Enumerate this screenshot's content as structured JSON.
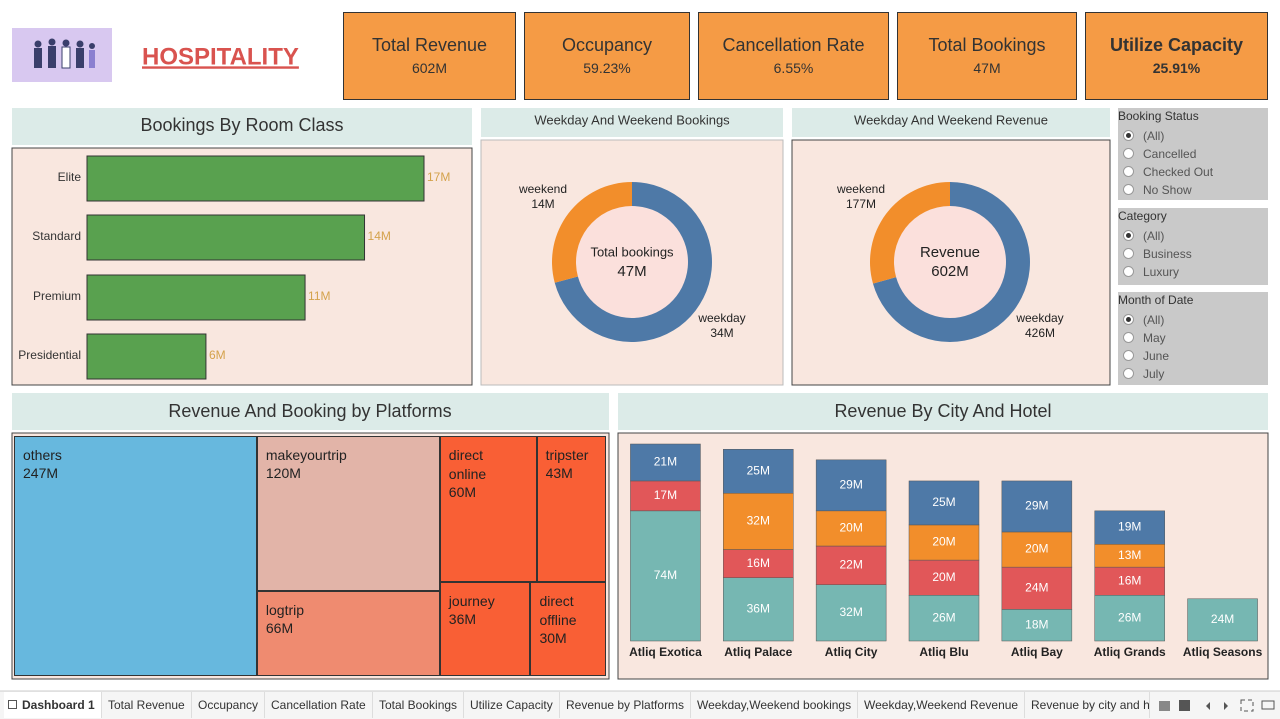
{
  "header": {
    "title": "HOSPITALITY"
  },
  "kpis": [
    {
      "label": "Total Revenue",
      "value": "602M"
    },
    {
      "label": "Occupancy",
      "value": "59.23%"
    },
    {
      "label": "Cancellation Rate",
      "value": "6.55%"
    },
    {
      "label": "Total Bookings",
      "value": "47M"
    },
    {
      "label": "Utilize Capacity",
      "value": "25.91%"
    }
  ],
  "chart_data": [
    {
      "type": "hbar",
      "title": "Bookings By Room Class",
      "categories": [
        "Elite",
        "Standard",
        "Premium",
        "Presidential"
      ],
      "values": [
        17,
        14,
        11,
        6
      ],
      "value_labels": [
        "17M",
        "14M",
        "11M",
        "6M"
      ],
      "color": "#59a14f"
    },
    {
      "type": "donut",
      "title": "Weekday And Weekend Bookings",
      "categories": [
        "weekday",
        "weekend"
      ],
      "values": [
        34,
        14
      ],
      "value_labels": [
        "34M",
        "14M"
      ],
      "colors": [
        "#4e79a7",
        "#f28e2b"
      ],
      "center_title": "Total bookings",
      "center_value": "47M"
    },
    {
      "type": "donut",
      "title": "Weekday And Weekend Revenue",
      "categories": [
        "weekday",
        "weekend"
      ],
      "values": [
        426,
        177
      ],
      "value_labels": [
        "426M",
        "177M"
      ],
      "colors": [
        "#4e79a7",
        "#f28e2b"
      ],
      "center_title": "Revenue",
      "center_value": "602M"
    },
    {
      "type": "treemap",
      "title": "Revenue And Booking by Platforms",
      "categories": [
        "others",
        "makeyourtrip",
        "logtrip",
        "direct online",
        "tripster",
        "journey",
        "direct offline"
      ],
      "values": [
        247,
        120,
        66,
        60,
        43,
        36,
        30
      ],
      "value_labels": [
        "247M",
        "120M",
        "66M",
        "60M",
        "43M",
        "36M",
        "30M"
      ],
      "colors": [
        "#67b8de",
        "#e2b4a8",
        "#ef8b70",
        "#f95f35",
        "#f95f35",
        "#f95f35",
        "#f95f35"
      ]
    },
    {
      "type": "stacked_bar",
      "title": "Revenue By City And Hotel",
      "categories": [
        "Atliq Exotica",
        "Atliq Palace",
        "Atliq City",
        "Atliq Blu",
        "Atliq Bay",
        "Atliq Grands",
        "Atliq Seasons"
      ],
      "series": [
        {
          "color": "#76b7b2",
          "values": [
            74,
            36,
            32,
            26,
            18,
            26,
            24
          ],
          "value_labels": [
            "74M",
            "36M",
            "32M",
            "26M",
            "18M",
            "26M",
            "24M"
          ]
        },
        {
          "color": "#e15759",
          "values": [
            17,
            16,
            22,
            20,
            24,
            16,
            null
          ],
          "value_labels": [
            "17M",
            "16M",
            "22M",
            "20M",
            "24M",
            "16M",
            null
          ]
        },
        {
          "color": "#f28e2b",
          "values": [
            null,
            32,
            20,
            20,
            20,
            13,
            null
          ],
          "value_labels": [
            null,
            "32M",
            "20M",
            "20M",
            "20M",
            "13M",
            null
          ]
        },
        {
          "color": "#4e79a7",
          "values": [
            21,
            25,
            29,
            25,
            29,
            19,
            null
          ],
          "value_labels": [
            "21M",
            "25M",
            "29M",
            "25M",
            "29M",
            "19M",
            null
          ]
        }
      ]
    }
  ],
  "filters": [
    {
      "title": "Booking Status",
      "options": [
        "(All)",
        "Cancelled",
        "Checked Out",
        "No Show"
      ],
      "selected": 0
    },
    {
      "title": "Category",
      "options": [
        "(All)",
        "Business",
        "Luxury"
      ],
      "selected": 0
    },
    {
      "title": "Month of Date",
      "options": [
        "(All)",
        "May",
        "June",
        "July"
      ],
      "selected": 0
    }
  ],
  "tabs": [
    "Dashboard 1",
    "Total Revenue",
    "Occupancy",
    "Cancellation Rate",
    "Total Bookings",
    "Utilize Capacity",
    "Revenue by Platforms",
    "Weekday,Weekend bookings",
    "Weekday,Weekend Revenue",
    "Revenue by city and hote"
  ]
}
